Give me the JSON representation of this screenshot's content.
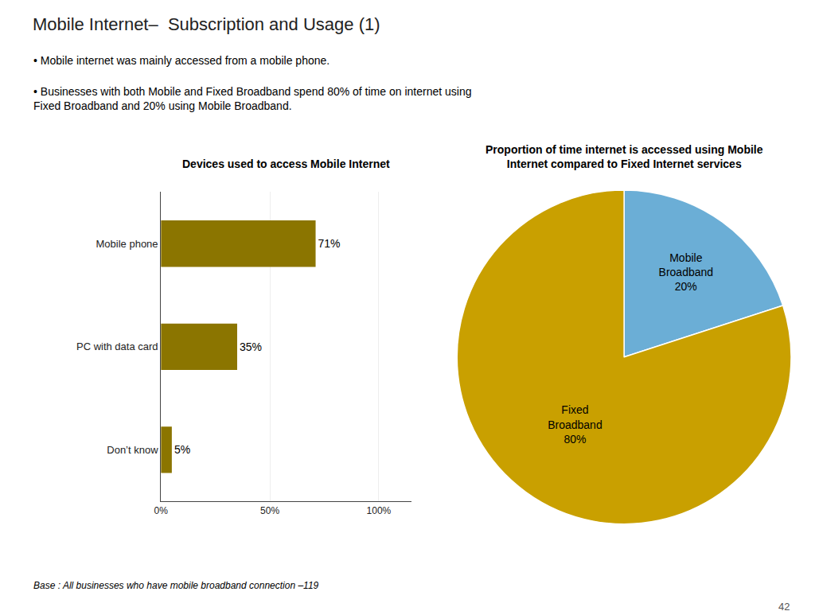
{
  "title": "Mobile Internet–  Subscription and Usage (1)",
  "annotations": [
    "• Mobile internet was mainly accessed from a mobile phone.",
    "• Businesses with both Mobile and Fixed Broadband spend 80% of time on internet using\nFixed Broadband and 20% using Mobile Broadband.",
    "Base : All businesses who have mobile broadband connection –119",
    "42"
  ],
  "chart_data": [
    {
      "type": "bar",
      "title": "Devices used to access Mobile Internet",
      "orientation": "horizontal",
      "categories": [
        "Don’t know",
        "PC with data card",
        "Mobile phone"
      ],
      "values": [
        5,
        35,
        71
      ],
      "value_labels": [
        "5%",
        "35%",
        "71%"
      ],
      "data_labels": true,
      "color": "#8B7500",
      "xlim": [
        0,
        115
      ],
      "xticks": [
        {
          "value": 0,
          "label": "0%"
        },
        {
          "value": 50,
          "label": "50%"
        },
        {
          "value": 100,
          "label": "100%"
        }
      ],
      "grid": true
    },
    {
      "type": "pie",
      "title": "Proportion of time internet is accessed using Mobile\nInternet compared to Fixed Internet services",
      "categories": [
        "Mobile Broadband",
        "Fixed Broadband"
      ],
      "values": [
        20,
        80
      ],
      "value_labels": [
        "Mobile\nBroadband\n20%",
        "Fixed\nBroadband\n80%"
      ],
      "data_labels": true,
      "colors": [
        "#6BAED6",
        "#C9A000"
      ]
    }
  ]
}
